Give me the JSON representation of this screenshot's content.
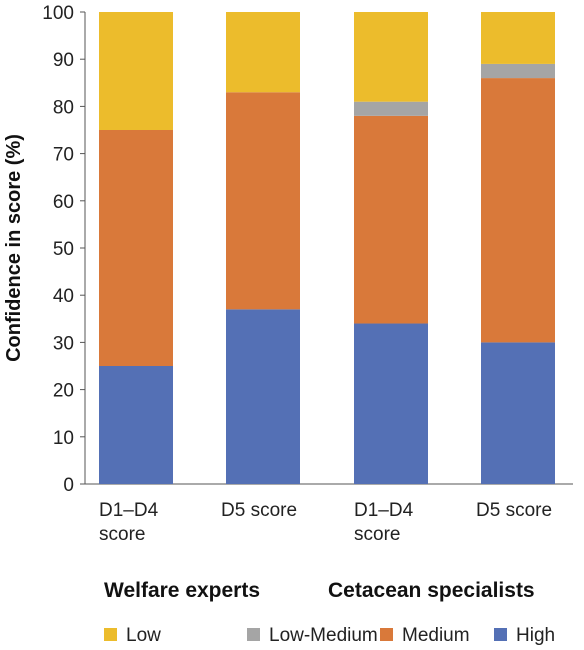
{
  "chart_data": {
    "type": "bar",
    "stacked": true,
    "ylabel": "Confidence in score (%)",
    "ylim": [
      0,
      100
    ],
    "yticks": [
      0,
      10,
      20,
      30,
      40,
      50,
      60,
      70,
      80,
      90,
      100
    ],
    "grid": false,
    "legend_position": "bottom",
    "categories": [
      [
        "D1–D4",
        "score"
      ],
      [
        "D5 score"
      ],
      [
        "D1–D4",
        "score"
      ],
      [
        "D5 score"
      ]
    ],
    "groups": [
      {
        "label": "Welfare experts",
        "categories": [
          0,
          1
        ]
      },
      {
        "label": "Cetacean specialists",
        "categories": [
          2,
          3
        ]
      }
    ],
    "series": [
      {
        "name": "High",
        "color": "#5470b5",
        "values": [
          25,
          37,
          34,
          30
        ]
      },
      {
        "name": "Medium",
        "color": "#d9793a",
        "values": [
          50,
          46,
          44,
          56
        ]
      },
      {
        "name": "Low-Medium",
        "color": "#a5a5a5",
        "values": [
          0,
          0,
          3,
          3
        ]
      },
      {
        "name": "Low",
        "color": "#ecbc2c",
        "values": [
          25,
          17,
          19,
          11
        ]
      }
    ],
    "legend_order": [
      "Low",
      "Low-Medium",
      "Medium",
      "High"
    ]
  }
}
